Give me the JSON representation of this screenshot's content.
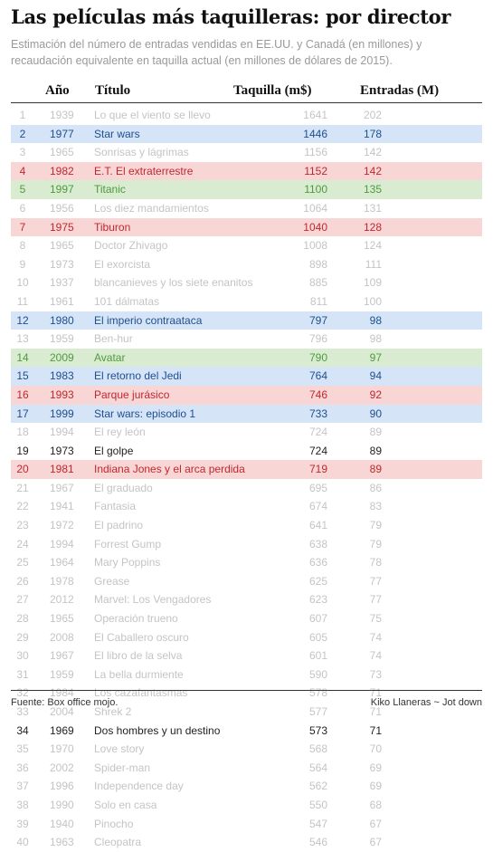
{
  "title": "Las películas más taquilleras: por director",
  "subtitle": "Estimación del número de entradas vendidas en EE.UU. y Canadá (en millones) y recaudación equivalente en taquilla actual (en millones de dólares de 2015).",
  "colors": {
    "blue": "#1f4f8f",
    "red": "#c0282d",
    "green": "#4f9a3c",
    "muted": "#c4c4c4"
  },
  "chart_data": {
    "type": "table",
    "columns": [
      "",
      "Año",
      "Título",
      "Taquilla (m$)",
      "Entradas (M)"
    ],
    "rows": [
      {
        "rank": 1,
        "year": 1939,
        "title": "Lo que el viento se llevo",
        "box_office": 1641,
        "tickets": 202,
        "highlight": "none"
      },
      {
        "rank": 2,
        "year": 1977,
        "title": "Star wars",
        "box_office": 1446,
        "tickets": 178,
        "highlight": "blue"
      },
      {
        "rank": 3,
        "year": 1965,
        "title": "Sonrisas y lágrimas",
        "box_office": 1156,
        "tickets": 142,
        "highlight": "none"
      },
      {
        "rank": 4,
        "year": 1982,
        "title": "E.T. El extraterrestre",
        "box_office": 1152,
        "tickets": 142,
        "highlight": "red"
      },
      {
        "rank": 5,
        "year": 1997,
        "title": "Titanic",
        "box_office": 1100,
        "tickets": 135,
        "highlight": "green"
      },
      {
        "rank": 6,
        "year": 1956,
        "title": "Los diez mandamientos",
        "box_office": 1064,
        "tickets": 131,
        "highlight": "none"
      },
      {
        "rank": 7,
        "year": 1975,
        "title": "Tiburon",
        "box_office": 1040,
        "tickets": 128,
        "highlight": "red"
      },
      {
        "rank": 8,
        "year": 1965,
        "title": "Doctor Zhivago",
        "box_office": 1008,
        "tickets": 124,
        "highlight": "none"
      },
      {
        "rank": 9,
        "year": 1973,
        "title": "El exorcista",
        "box_office": 898,
        "tickets": 111,
        "highlight": "none"
      },
      {
        "rank": 10,
        "year": 1937,
        "title": "blancanieves y los siete enanitos",
        "box_office": 885,
        "tickets": 109,
        "highlight": "none"
      },
      {
        "rank": 11,
        "year": 1961,
        "title": "101 dálmatas",
        "box_office": 811,
        "tickets": 100,
        "highlight": "none"
      },
      {
        "rank": 12,
        "year": 1980,
        "title": "El imperio contraataca",
        "box_office": 797,
        "tickets": 98,
        "highlight": "blue"
      },
      {
        "rank": 13,
        "year": 1959,
        "title": "Ben-hur",
        "box_office": 796,
        "tickets": 98,
        "highlight": "none"
      },
      {
        "rank": 14,
        "year": 2009,
        "title": "Avatar",
        "box_office": 790,
        "tickets": 97,
        "highlight": "green"
      },
      {
        "rank": 15,
        "year": 1983,
        "title": "El retorno del Jedi",
        "box_office": 764,
        "tickets": 94,
        "highlight": "blue"
      },
      {
        "rank": 16,
        "year": 1993,
        "title": "Parque jurásico",
        "box_office": 746,
        "tickets": 92,
        "highlight": "red"
      },
      {
        "rank": 17,
        "year": 1999,
        "title": "Star wars: episodio 1",
        "box_office": 733,
        "tickets": 90,
        "highlight": "blue"
      },
      {
        "rank": 18,
        "year": 1994,
        "title": "El rey león",
        "box_office": 724,
        "tickets": 89,
        "highlight": "none"
      },
      {
        "rank": 19,
        "year": 1973,
        "title": "El golpe",
        "box_office": 724,
        "tickets": 89,
        "highlight": "plain"
      },
      {
        "rank": 20,
        "year": 1981,
        "title": "Indiana Jones y el arca perdida",
        "box_office": 719,
        "tickets": 89,
        "highlight": "red"
      },
      {
        "rank": 21,
        "year": 1967,
        "title": "El graduado",
        "box_office": 695,
        "tickets": 86,
        "highlight": "none"
      },
      {
        "rank": 22,
        "year": 1941,
        "title": "Fantasia",
        "box_office": 674,
        "tickets": 83,
        "highlight": "none"
      },
      {
        "rank": 23,
        "year": 1972,
        "title": "El padrino",
        "box_office": 641,
        "tickets": 79,
        "highlight": "none"
      },
      {
        "rank": 24,
        "year": 1994,
        "title": "Forrest Gump",
        "box_office": 638,
        "tickets": 79,
        "highlight": "none"
      },
      {
        "rank": 25,
        "year": 1964,
        "title": "Mary Poppins",
        "box_office": 636,
        "tickets": 78,
        "highlight": "none"
      },
      {
        "rank": 26,
        "year": 1978,
        "title": "Grease",
        "box_office": 625,
        "tickets": 77,
        "highlight": "none"
      },
      {
        "rank": 27,
        "year": 2012,
        "title": "Marvel: Los Vengadores",
        "box_office": 623,
        "tickets": 77,
        "highlight": "none"
      },
      {
        "rank": 28,
        "year": 1965,
        "title": "Operación trueno",
        "box_office": 607,
        "tickets": 75,
        "highlight": "none"
      },
      {
        "rank": 29,
        "year": 2008,
        "title": "El Caballero oscuro",
        "box_office": 605,
        "tickets": 74,
        "highlight": "none"
      },
      {
        "rank": 30,
        "year": 1967,
        "title": "El libro de la selva",
        "box_office": 601,
        "tickets": 74,
        "highlight": "none"
      },
      {
        "rank": 31,
        "year": 1959,
        "title": "La bella durmiente",
        "box_office": 590,
        "tickets": 73,
        "highlight": "none"
      },
      {
        "rank": 32,
        "year": 1984,
        "title": "Los cazafantasmas",
        "box_office": 578,
        "tickets": 71,
        "highlight": "none"
      },
      {
        "rank": 33,
        "year": 2004,
        "title": "Shrek 2",
        "box_office": 577,
        "tickets": 71,
        "highlight": "none"
      },
      {
        "rank": 34,
        "year": 1969,
        "title": "Dos hombres y un destino",
        "box_office": 573,
        "tickets": 71,
        "highlight": "plain"
      },
      {
        "rank": 35,
        "year": 1970,
        "title": "Love story",
        "box_office": 568,
        "tickets": 70,
        "highlight": "none"
      },
      {
        "rank": 36,
        "year": 2002,
        "title": "Spider-man",
        "box_office": 564,
        "tickets": 69,
        "highlight": "none"
      },
      {
        "rank": 37,
        "year": 1996,
        "title": "Independence day",
        "box_office": 562,
        "tickets": 69,
        "highlight": "none"
      },
      {
        "rank": 38,
        "year": 1990,
        "title": "Solo en casa",
        "box_office": 550,
        "tickets": 68,
        "highlight": "none"
      },
      {
        "rank": 39,
        "year": 1940,
        "title": "Pinocho",
        "box_office": 547,
        "tickets": 67,
        "highlight": "none"
      },
      {
        "rank": 40,
        "year": 1963,
        "title": "Cleopatra",
        "box_office": 546,
        "tickets": 67,
        "highlight": "none"
      }
    ]
  },
  "footer": {
    "source": "Fuente: Box office mojo.",
    "credit": "Kiko Llaneras ~ Jot down"
  }
}
